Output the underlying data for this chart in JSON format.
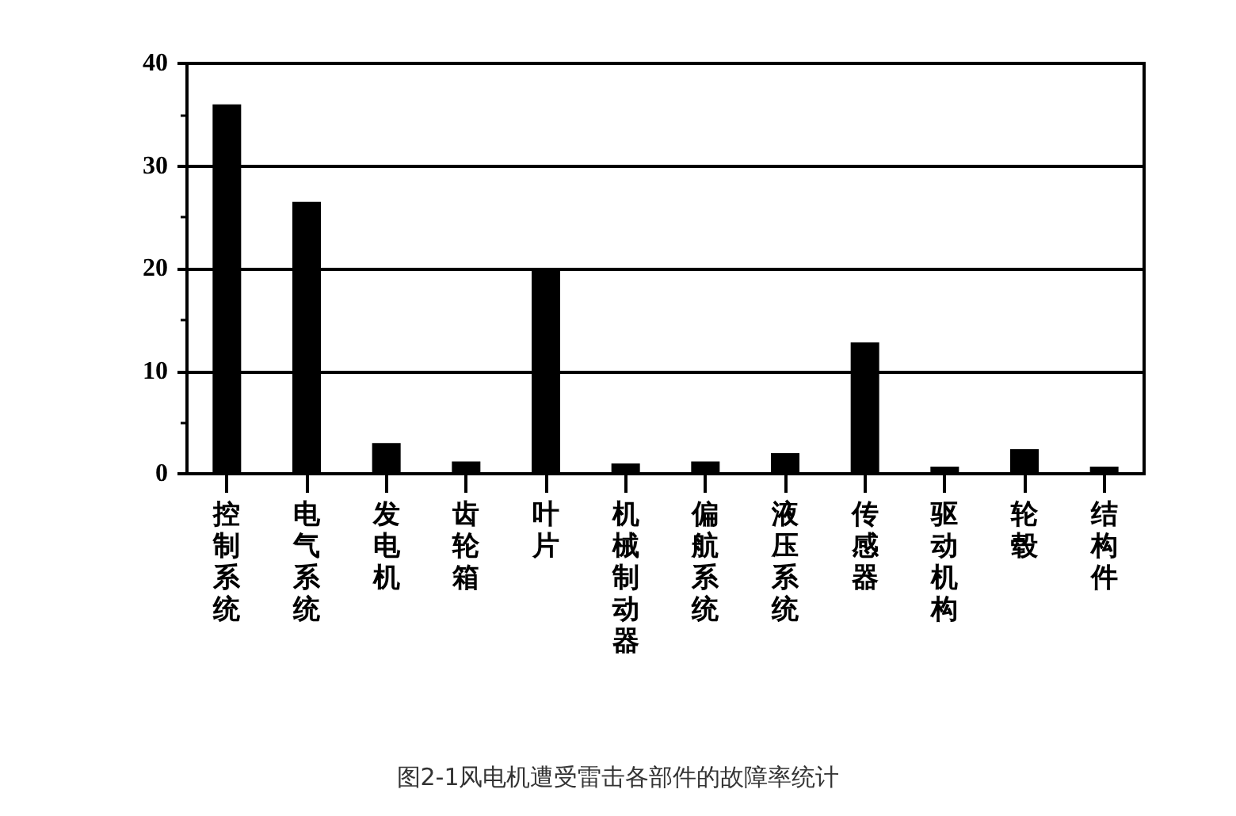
{
  "chart_data": {
    "type": "bar",
    "categories": [
      "控制系统",
      "电气系统",
      "发电机",
      "齿轮箱",
      "叶片",
      "机械制动器",
      "偏航系统",
      "液压系统",
      "传感器",
      "驱动机构",
      "轮毂",
      "结构件"
    ],
    "values": [
      36,
      26.5,
      3,
      1.2,
      20,
      1,
      1.2,
      2,
      12.8,
      0.7,
      2.4,
      0.7
    ],
    "color": "#000000",
    "ylim": [
      0,
      40
    ],
    "yticks": [
      0,
      10,
      20,
      30,
      40
    ],
    "grid": "y",
    "annotations": [
      "图2-1风电机遭受雷击各部件的故障率统计"
    ]
  }
}
